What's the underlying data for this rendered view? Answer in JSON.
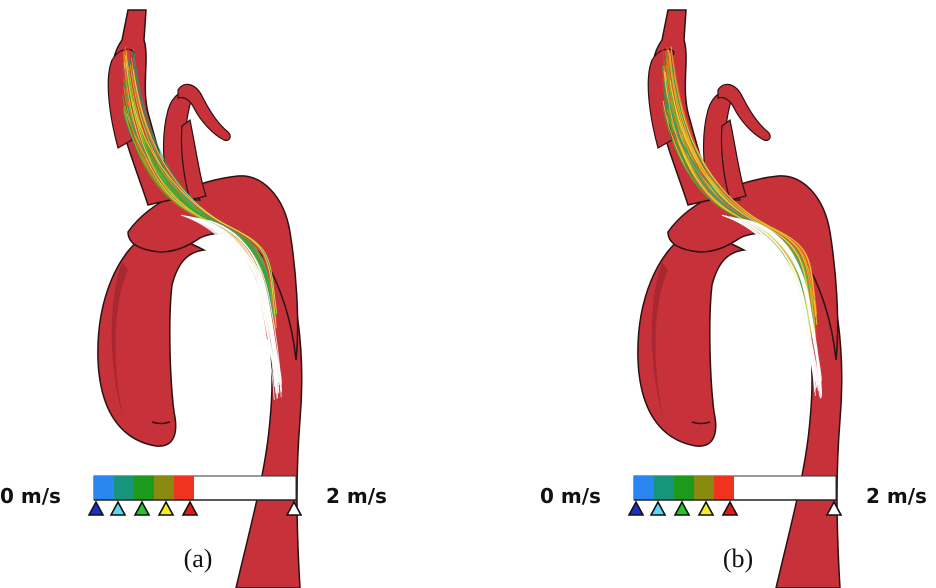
{
  "panels": [
    {
      "id": "a",
      "caption": "(a)",
      "min_label": "0 m/s",
      "max_label": "2 m/s"
    },
    {
      "id": "b",
      "caption": "(b)",
      "min_label": "0 m/s",
      "max_label": "2 m/s"
    }
  ],
  "colorbar": {
    "colors": [
      "#2a86f0",
      "#16957a",
      "#1c9a1c",
      "#8a8a10",
      "#f0331f",
      "#ffffff"
    ],
    "marker_colors": [
      "#1b2ec8",
      "#5ad8f0",
      "#26c426",
      "#f2ee20",
      "#e81818",
      "#ffffff"
    ]
  },
  "colors": {
    "vessel": "#c6313a",
    "vessel_dark": "#9a2229",
    "outline": "#2a1212"
  }
}
